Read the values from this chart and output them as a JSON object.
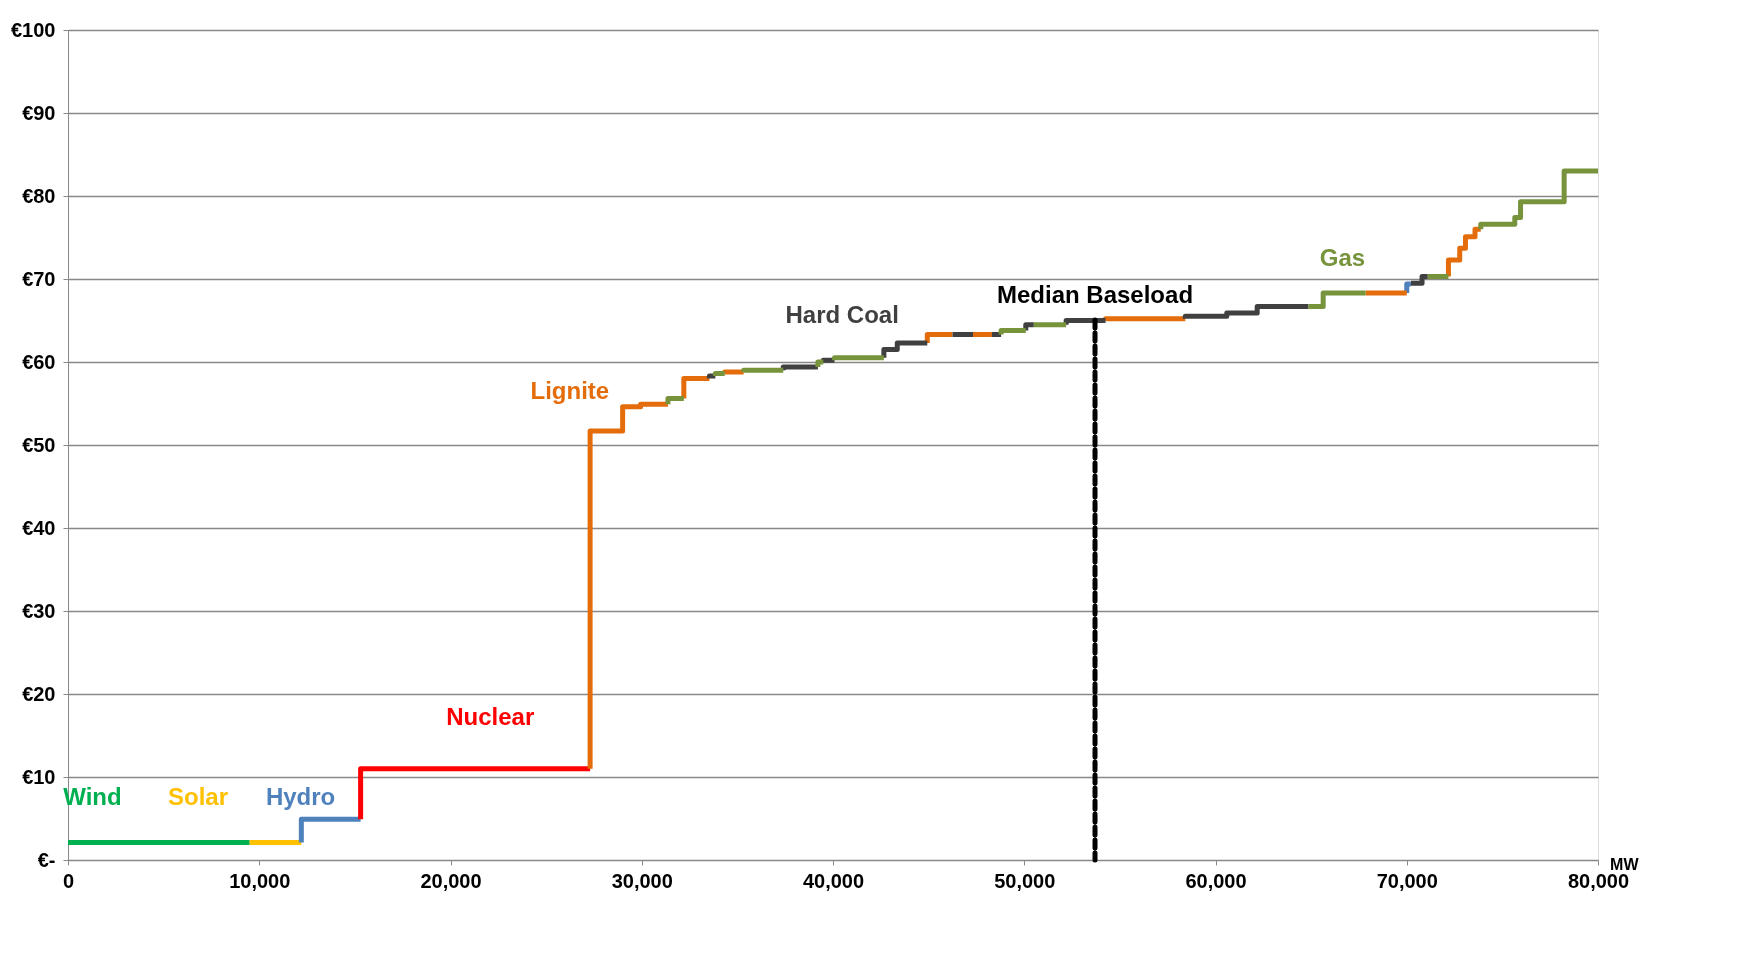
{
  "chart_data": {
    "type": "line",
    "xlabel": "MW",
    "xlim": [
      0,
      80000
    ],
    "ylim": [
      0,
      100
    ],
    "xticks": [
      {
        "value": 0,
        "label": "0"
      },
      {
        "value": 10000,
        "label": "10,000"
      },
      {
        "value": 20000,
        "label": "20,000"
      },
      {
        "value": 30000,
        "label": "30,000"
      },
      {
        "value": 40000,
        "label": "40,000"
      },
      {
        "value": 50000,
        "label": "50,000"
      },
      {
        "value": 60000,
        "label": "60,000"
      },
      {
        "value": 70000,
        "label": "70,000"
      },
      {
        "value": 80000,
        "label": "80,000"
      }
    ],
    "yticks": [
      {
        "value": 0,
        "label": "€-"
      },
      {
        "value": 10,
        "label": "€10"
      },
      {
        "value": 20,
        "label": "€20"
      },
      {
        "value": 30,
        "label": "€30"
      },
      {
        "value": 40,
        "label": "€40"
      },
      {
        "value": 50,
        "label": "€50"
      },
      {
        "value": 60,
        "label": "€60"
      },
      {
        "value": 70,
        "label": "€70"
      },
      {
        "value": 80,
        "label": "€80"
      },
      {
        "value": 90,
        "label": "€90"
      },
      {
        "value": 100,
        "label": "€100"
      }
    ],
    "grid": "y",
    "marker": "none",
    "line_style": "solid",
    "ref_lines": [
      {
        "axis": "x",
        "value": 53700,
        "label": "Median Baseload",
        "color": "#000000",
        "line_style": "dashed"
      }
    ],
    "series": [
      {
        "name": "Wind",
        "color": "#00b050",
        "x": [
          0,
          9500
        ],
        "values": [
          2.1,
          2.1
        ]
      },
      {
        "name": "Solar",
        "color": "#ffc000",
        "x": [
          9500,
          12200
        ],
        "values": [
          2.1,
          2.1
        ]
      },
      {
        "name": "Hydro",
        "color": "#4f81bd",
        "x": [
          12200,
          12200,
          15300,
          null,
          70000,
          70000,
          70220
        ],
        "values": [
          2.1,
          4.9,
          4.9,
          null,
          68.3,
          69.4,
          69.4
        ]
      },
      {
        "name": "Nuclear",
        "color": "#ff0000",
        "x": [
          15300,
          15300,
          27300
        ],
        "values": [
          4.9,
          11,
          11
        ]
      },
      {
        "name": "Lignite",
        "color": "#e46c0a",
        "x": [
          27300,
          27300,
          29000,
          29000,
          29940,
          29940,
          31370,
          null,
          32200,
          32200,
          33540,
          null,
          34340,
          34340,
          35330,
          null,
          44930,
          44930,
          46250,
          null,
          47320,
          48310,
          null,
          54250,
          54250,
          58420,
          null,
          67850,
          70000,
          null,
          72180,
          72180,
          72770,
          72770,
          73070,
          73070,
          73570,
          73570,
          73870
        ],
        "values": [
          11,
          51.7,
          51.7,
          54.6,
          54.6,
          54.9,
          54.9,
          null,
          55.6,
          58,
          58,
          null,
          58.6,
          58.8,
          58.8,
          null,
          62.3,
          63.3,
          63.3,
          null,
          63.3,
          63.3,
          null,
          65,
          65.2,
          65.2,
          null,
          68.3,
          68.3,
          null,
          70.3,
          72.3,
          72.3,
          73.7,
          73.7,
          75.1,
          75.1,
          76,
          76
        ]
      },
      {
        "name": "Hard Coal",
        "color": "#404040",
        "x": [
          33540,
          33540,
          33850,
          null,
          37400,
          37400,
          39210,
          null,
          39490,
          39490,
          40080,
          null,
          42660,
          42660,
          43360,
          43360,
          44930,
          null,
          46250,
          47320,
          null,
          48310,
          48790,
          null,
          50080,
          50080,
          50500,
          null,
          52190,
          52190,
          54250,
          null,
          58420,
          58420,
          60590,
          60590,
          62180,
          62180,
          64860,
          null,
          70220,
          70800,
          70800,
          71100
        ],
        "values": [
          58,
          58.3,
          58.3,
          null,
          59,
          59.4,
          59.4,
          null,
          60,
          60.2,
          60.2,
          null,
          60.5,
          61.5,
          61.5,
          62.3,
          62.3,
          null,
          63.3,
          63.3,
          null,
          63.3,
          63.3,
          null,
          63.8,
          64.5,
          64.5,
          null,
          64.5,
          65,
          65,
          null,
          65.2,
          65.5,
          65.5,
          65.9,
          65.9,
          66.7,
          66.7,
          null,
          69.5,
          69.5,
          70.3,
          70.3
        ]
      },
      {
        "name": "Gas",
        "color": "#77933c",
        "x": [
          31370,
          31370,
          32200,
          null,
          33850,
          33850,
          34340,
          null,
          35330,
          35330,
          37400,
          null,
          39210,
          39210,
          39490,
          null,
          40080,
          40080,
          42660,
          null,
          48790,
          48790,
          50080,
          null,
          50500,
          52190,
          null,
          64860,
          65630,
          65630,
          67850,
          null,
          71100,
          72180,
          null,
          73870,
          73870,
          75650,
          75650,
          75950,
          75950,
          78230,
          78230,
          80000
        ],
        "values": [
          54.9,
          55.6,
          55.6,
          null,
          58.3,
          58.6,
          58.6,
          null,
          58.8,
          59,
          59,
          null,
          59.4,
          60,
          60,
          null,
          60.2,
          60.5,
          60.5,
          null,
          63.3,
          63.8,
          63.8,
          null,
          64.5,
          64.5,
          null,
          66.7,
          66.7,
          68.3,
          68.3,
          null,
          70.3,
          70.3,
          null,
          76,
          76.6,
          76.6,
          77.4,
          77.4,
          79.3,
          79.3,
          83,
          83
        ]
      }
    ]
  }
}
